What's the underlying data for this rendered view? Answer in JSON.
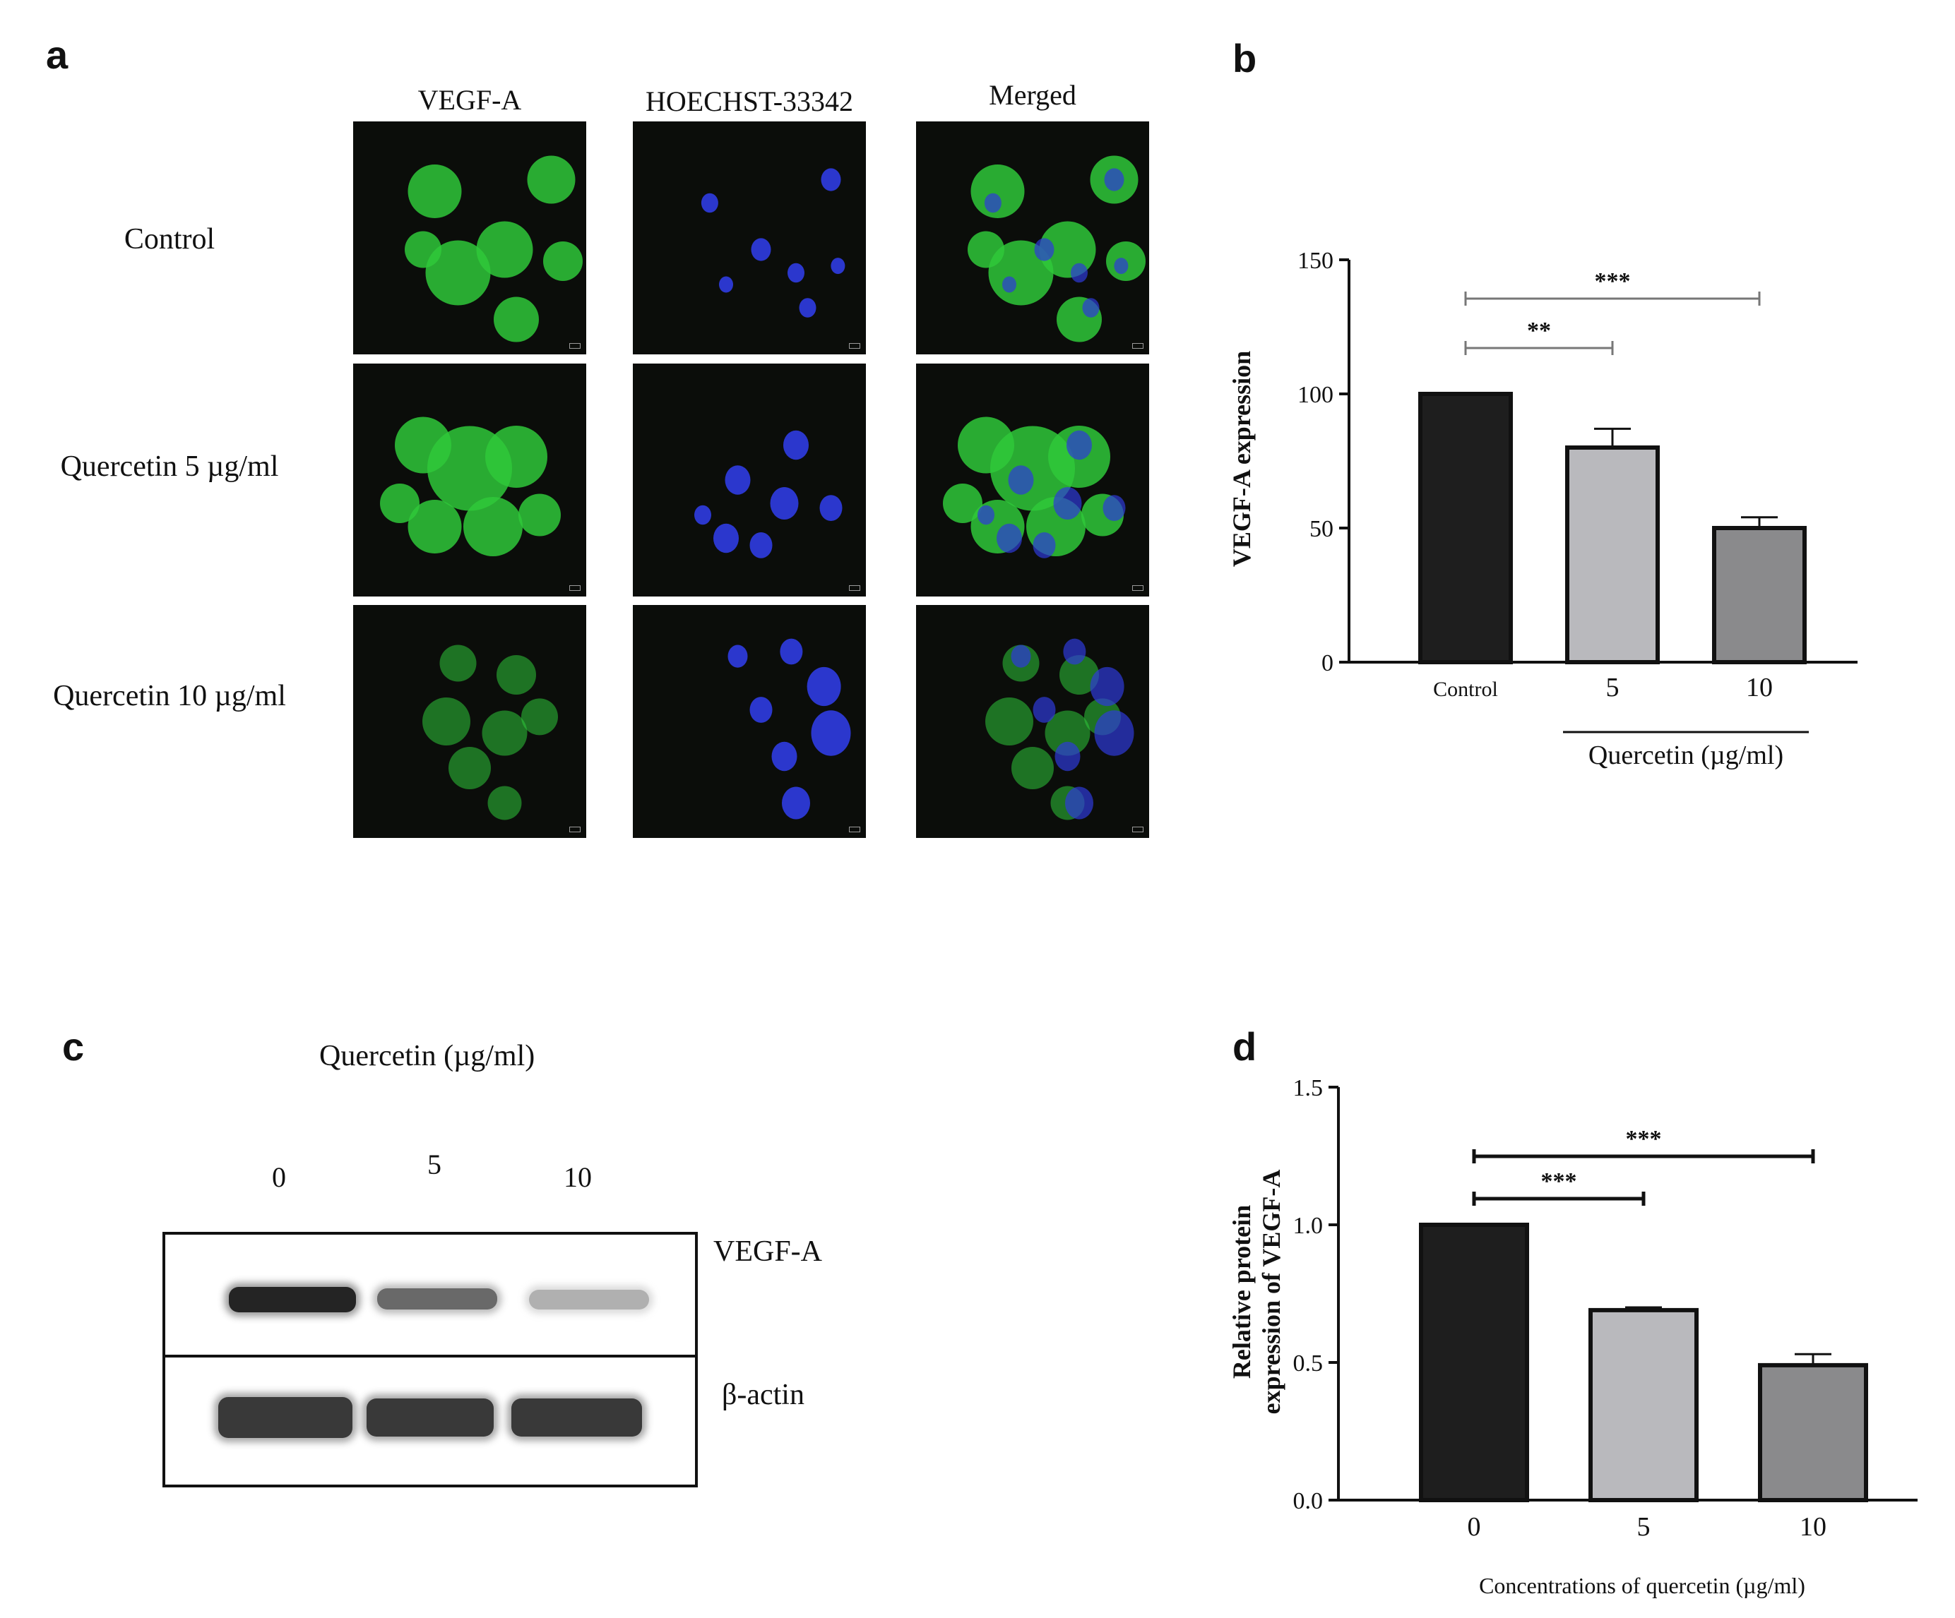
{
  "panel_a": {
    "label": "a",
    "columns": [
      "VEGF-A",
      "HOECHST-33342",
      "Merged"
    ],
    "rows": [
      "Control",
      "Quercetin 5 µg/ml",
      "Quercetin 10 µg/ml"
    ],
    "colors": {
      "vegf": "#2fc83a",
      "hoechst": "#2d3ad8",
      "background": "#0b0d0a"
    }
  },
  "panel_b": {
    "label": "b"
  },
  "panel_c": {
    "label": "c",
    "title": "Quercetin (µg/ml)",
    "lanes": [
      "0",
      "5",
      "10"
    ],
    "bands": [
      {
        "name": "VEGF-A",
        "intensities": [
          0.95,
          0.62,
          0.28
        ]
      },
      {
        "name": "β-actin",
        "intensities": [
          0.85,
          0.85,
          0.85
        ]
      }
    ]
  },
  "panel_d": {
    "label": "d"
  },
  "chart_data": [
    {
      "type": "bar",
      "panel": "b",
      "categories": [
        "Control",
        "5",
        "10"
      ],
      "values": [
        100,
        80,
        50
      ],
      "errors": [
        0,
        7,
        4
      ],
      "ylabel": "VEGF-A expression",
      "xgroup_label": "Quercetin (µg/ml)",
      "ylim": [
        0,
        150
      ],
      "yticks": [
        "0",
        "50",
        "100",
        "150"
      ],
      "bar_colors": [
        "#1e1e1e",
        "#b9b9bd",
        "#8a8a8c"
      ],
      "significance": [
        {
          "from": 0,
          "to": 1,
          "label": "**"
        },
        {
          "from": 0,
          "to": 2,
          "label": "***"
        }
      ]
    },
    {
      "type": "bar",
      "panel": "d",
      "categories": [
        "0",
        "5",
        "10"
      ],
      "values": [
        1.0,
        0.69,
        0.49
      ],
      "errors": [
        0,
        0.01,
        0.04
      ],
      "ylabel": "Relative protein expression of VEGF-A",
      "ylabel_lines": [
        "Relative protein",
        "expression of VEGF-A"
      ],
      "xlabel": "Concentrations of quercetin (µg/ml)",
      "ylim": [
        0,
        1.5
      ],
      "yticks": [
        "0.0",
        "0.5",
        "1.0",
        "1.5"
      ],
      "bar_colors": [
        "#1e1e1e",
        "#b9b9bd",
        "#8a8a8c"
      ],
      "significance": [
        {
          "from": 0,
          "to": 1,
          "label": "***"
        },
        {
          "from": 0,
          "to": 2,
          "label": "***"
        }
      ]
    }
  ]
}
